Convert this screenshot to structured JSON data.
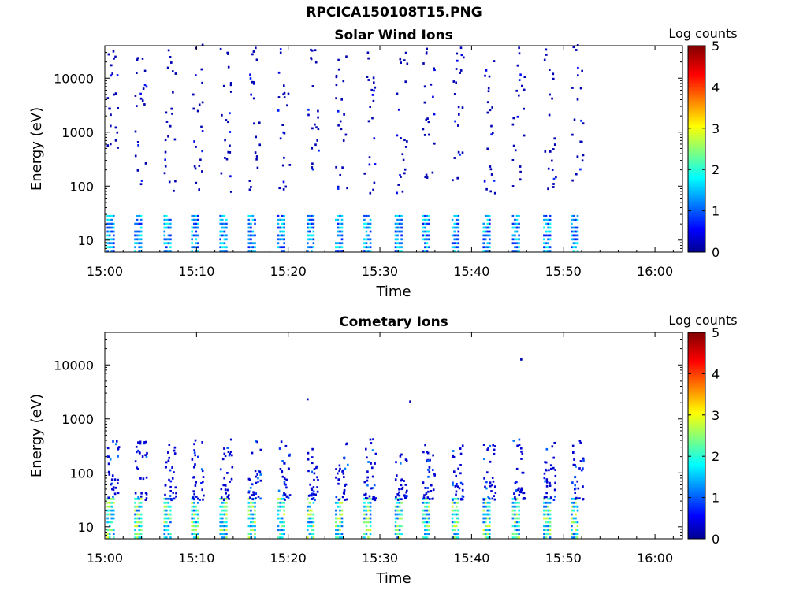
{
  "figure_title": "RPCICA150108T15.PNG",
  "colorbar": {
    "label": "Log counts",
    "ticks": [
      "0",
      "1",
      "2",
      "3",
      "4",
      "5"
    ],
    "range": [
      0,
      5
    ],
    "colormap": "jet"
  },
  "chart_data": [
    {
      "type": "heatmap",
      "title": "Solar Wind Ions",
      "xlabel": "Time",
      "ylabel": "Energy (eV)",
      "yscale": "log",
      "ylim": [
        6,
        40000
      ],
      "xlim_minutes": [
        0,
        63
      ],
      "x_ticks": [
        "15:00",
        "15:10",
        "15:20",
        "15:30",
        "15:40",
        "15:50",
        "16:00"
      ],
      "y_ticks": [
        "10",
        "100",
        "1000",
        "10000"
      ],
      "scan_start_minutes": [
        0.2,
        3.2,
        6.4,
        9.4,
        12.5,
        15.6,
        18.8,
        22.0,
        25.1,
        28.2,
        31.6,
        34.6,
        37.8,
        41.2,
        44.4,
        47.8,
        50.8
      ],
      "band_energy_range_eV": [
        6,
        28
      ],
      "band_peak_log_counts": 2.0,
      "sparse_counts": "isolated single-count pixels spread from 70 eV to 40000 eV up to 15:52"
    },
    {
      "type": "heatmap",
      "title": "Cometary Ions",
      "xlabel": "Time",
      "ylabel": "Energy (eV)",
      "yscale": "log",
      "ylim": [
        6,
        40000
      ],
      "xlim_minutes": [
        0,
        63
      ],
      "x_ticks": [
        "15:00",
        "15:10",
        "15:20",
        "15:30",
        "15:40",
        "15:50",
        "16:00"
      ],
      "y_ticks": [
        "10",
        "100",
        "1000",
        "10000"
      ],
      "scan_start_minutes": [
        0.2,
        3.2,
        6.4,
        9.4,
        12.5,
        15.6,
        18.8,
        22.0,
        25.1,
        28.2,
        31.6,
        34.6,
        37.8,
        41.2,
        44.4,
        47.8,
        50.8
      ],
      "band_energy_range_eV": [
        6,
        35
      ],
      "band_peak_log_counts": 3.0,
      "sparse_counts": "scattered counts from 35 eV to 400 eV; isolated points near 2200 eV (15:22), 2000 eV (15:33), 12000 eV (15:45)"
    }
  ]
}
